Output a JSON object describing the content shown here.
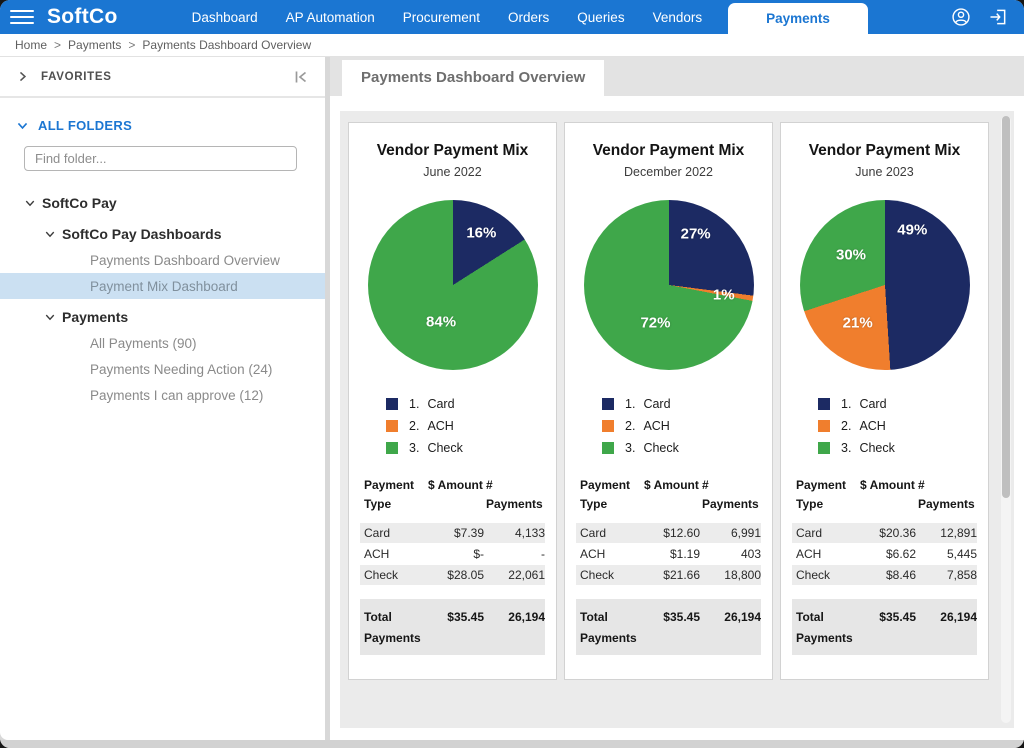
{
  "colors": {
    "topbar_blue": "#1B76D2",
    "navy": "#1C2A63",
    "orange": "#F07E2D",
    "green": "#3FA74A",
    "selected_row_bg": "#CBE0F2"
  },
  "topbar": {
    "brand": "SoftCo",
    "nav": [
      {
        "label": "Dashboard",
        "active": false
      },
      {
        "label": "AP Automation",
        "active": false
      },
      {
        "label": "Procurement",
        "active": false
      },
      {
        "label": "Orders",
        "active": false
      },
      {
        "label": "Queries",
        "active": false
      },
      {
        "label": "Vendors",
        "active": false
      },
      {
        "label": "Payments",
        "active": true
      }
    ]
  },
  "breadcrumb": {
    "items": [
      "Home",
      "Payments",
      "Payments Dashboard Overview"
    ],
    "separator": ">"
  },
  "sidebar": {
    "favorites_label": "FAVORITES",
    "all_folders_label": "ALL FOLDERS",
    "find_placeholder": "Find folder...",
    "tree": [
      {
        "label": "SoftCo Pay",
        "level": 0,
        "type": "folder",
        "expanded": true,
        "selected": false
      },
      {
        "label": "SoftCo Pay Dashboards",
        "level": 1,
        "type": "folder",
        "expanded": true,
        "selected": false
      },
      {
        "label": "Payments Dashboard Overview",
        "level": 2,
        "type": "item",
        "selected": false
      },
      {
        "label": "Payment Mix Dashboard",
        "level": 2,
        "type": "item",
        "selected": true
      },
      {
        "label": "Payments",
        "level": 1,
        "type": "folder",
        "expanded": true,
        "selected": false
      },
      {
        "label": "All Payments (90)",
        "level": 2,
        "type": "item",
        "selected": false
      },
      {
        "label": "Payments Needing Action (24)",
        "level": 2,
        "type": "item",
        "selected": false
      },
      {
        "label": "Payments I can approve (12)",
        "level": 2,
        "type": "item",
        "selected": false
      }
    ]
  },
  "main": {
    "tab_label": "Payments Dashboard Overview"
  },
  "chart_data": [
    {
      "type": "pie",
      "title": "Vendor Payment Mix",
      "subtitle": "June 2022",
      "slices": [
        {
          "label": "Card",
          "pct": 16,
          "color": "#1C2A63",
          "label_angle": 29,
          "label_r": 0.7
        },
        {
          "label": "ACH",
          "pct": 0,
          "color": "#F07E2D"
        },
        {
          "label": "Check",
          "pct": 84,
          "color": "#3FA74A",
          "label_angle": 197,
          "label_r": 0.46
        }
      ],
      "legend": [
        {
          "num": "1.",
          "label": "Card",
          "color": "#1C2A63"
        },
        {
          "num": "2.",
          "label": "ACH",
          "color": "#F07E2D"
        },
        {
          "num": "3.",
          "label": "Check",
          "color": "#3FA74A"
        }
      ],
      "table": {
        "headers": [
          "Payment Type",
          "$ Amount",
          "# Payments"
        ],
        "rows": [
          [
            "Card",
            "$7.39",
            "4,133"
          ],
          [
            "ACH",
            "$-",
            "-"
          ],
          [
            "Check",
            "$28.05",
            "22,061"
          ]
        ],
        "total": [
          "Total Payments",
          "$35.45",
          "26,194"
        ]
      }
    },
    {
      "type": "pie",
      "title": "Vendor Payment Mix",
      "subtitle": "December 2022",
      "slices": [
        {
          "label": "Card",
          "pct": 27,
          "color": "#1C2A63",
          "label_angle": 28,
          "label_r": 0.68
        },
        {
          "label": "ACH",
          "pct": 1,
          "color": "#F07E2D",
          "label_angle": 100,
          "label_r": 0.66
        },
        {
          "label": "Check",
          "pct": 72,
          "color": "#3FA74A",
          "label_angle": 199,
          "label_r": 0.47
        }
      ],
      "legend": [
        {
          "num": "1.",
          "label": "Card",
          "color": "#1C2A63"
        },
        {
          "num": "2.",
          "label": "ACH",
          "color": "#F07E2D"
        },
        {
          "num": "3.",
          "label": "Check",
          "color": "#3FA74A"
        }
      ],
      "table": {
        "headers": [
          "Payment Type",
          "$ Amount",
          "# Payments"
        ],
        "rows": [
          [
            "Card",
            "$12.60",
            "6,991"
          ],
          [
            "ACH",
            "$1.19",
            "403"
          ],
          [
            "Check",
            "$21.66",
            "18,800"
          ]
        ],
        "total": [
          "Total Payments",
          "$35.45",
          "26,194"
        ]
      }
    },
    {
      "type": "pie",
      "title": "Vendor Payment Mix",
      "subtitle": "June 2023",
      "slices": [
        {
          "label": "Card",
          "pct": 49,
          "color": "#1C2A63",
          "label_angle": 27,
          "label_r": 0.72
        },
        {
          "label": "ACH",
          "pct": 21,
          "color": "#F07E2D",
          "label_angle": 215,
          "label_r": 0.55
        },
        {
          "label": "Check",
          "pct": 30,
          "color": "#3FA74A",
          "label_angle": 312,
          "label_r": 0.53
        }
      ],
      "legend": [
        {
          "num": "1.",
          "label": "Card",
          "color": "#1C2A63"
        },
        {
          "num": "2.",
          "label": "ACH",
          "color": "#F07E2D"
        },
        {
          "num": "3.",
          "label": "Check",
          "color": "#3FA74A"
        }
      ],
      "table": {
        "headers": [
          "Payment Type",
          "$ Amount",
          "# Payments"
        ],
        "rows": [
          [
            "Card",
            "$20.36",
            "12,891"
          ],
          [
            "ACH",
            "$6.62",
            "5,445"
          ],
          [
            "Check",
            "$8.46",
            "7,858"
          ]
        ],
        "total": [
          "Total Payments",
          "$35.45",
          "26,194"
        ]
      }
    }
  ]
}
